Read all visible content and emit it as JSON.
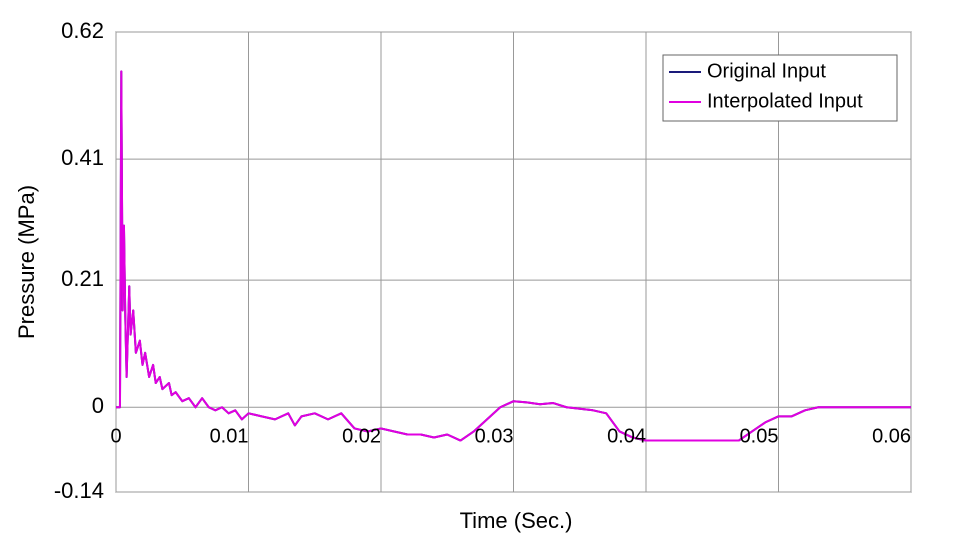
{
  "chart_data": {
    "type": "line",
    "x_label": "Time (Sec.)",
    "y_label": "Pressure (MPa)",
    "xlim": [
      0,
      0.06
    ],
    "xticks": [
      0,
      0.01,
      0.02,
      0.03,
      0.04,
      0.05,
      0.06
    ],
    "ylim": [
      -0.14,
      0.62
    ],
    "yticks": [
      -0.14,
      0,
      0.21,
      0.41,
      0.62
    ],
    "grid": true,
    "legend": "top-right",
    "x": [
      0,
      0.0003,
      0.0004,
      0.0005,
      0.0006,
      0.0007,
      0.0008,
      0.001,
      0.0011,
      0.0013,
      0.0015,
      0.0018,
      0.002,
      0.0022,
      0.0025,
      0.0028,
      0.003,
      0.0033,
      0.0035,
      0.004,
      0.0042,
      0.0045,
      0.005,
      0.0055,
      0.006,
      0.0065,
      0.007,
      0.0075,
      0.008,
      0.0085,
      0.009,
      0.0095,
      0.01,
      0.011,
      0.012,
      0.013,
      0.0135,
      0.014,
      0.015,
      0.016,
      0.017,
      0.018,
      0.019,
      0.02,
      0.021,
      0.022,
      0.023,
      0.024,
      0.025,
      0.026,
      0.027,
      0.028,
      0.029,
      0.03,
      0.031,
      0.032,
      0.033,
      0.034,
      0.036,
      0.037,
      0.038,
      0.039,
      0.04,
      0.042,
      0.045,
      0.047,
      0.048,
      0.049,
      0.05,
      0.051,
      0.052,
      0.053,
      0.06
    ],
    "series": [
      {
        "name": "Original Input",
        "color": "#1a1a7a",
        "values": [
          0,
          0,
          0.555,
          0.16,
          0.3,
          0.15,
          0.05,
          0.2,
          0.12,
          0.16,
          0.09,
          0.11,
          0.07,
          0.09,
          0.05,
          0.07,
          0.04,
          0.05,
          0.03,
          0.04,
          0.02,
          0.025,
          0.01,
          0.015,
          0,
          0.015,
          0,
          -0.005,
          0,
          -0.01,
          -0.005,
          -0.02,
          -0.01,
          -0.015,
          -0.02,
          -0.01,
          -0.03,
          -0.015,
          -0.01,
          -0.02,
          -0.01,
          -0.035,
          -0.04,
          -0.035,
          -0.04,
          -0.045,
          -0.045,
          -0.05,
          -0.045,
          -0.055,
          -0.04,
          -0.02,
          0,
          0.01,
          0.008,
          0.005,
          0.007,
          0,
          -0.005,
          -0.01,
          -0.04,
          -0.05,
          -0.055,
          -0.055,
          -0.055,
          -0.055,
          -0.04,
          -0.025,
          -0.015,
          -0.015,
          -0.005,
          0,
          0
        ]
      },
      {
        "name": "Interpolated Input",
        "color": "#e000e0",
        "values": [
          0,
          0,
          0.555,
          0.16,
          0.3,
          0.15,
          0.05,
          0.2,
          0.12,
          0.16,
          0.09,
          0.11,
          0.07,
          0.09,
          0.05,
          0.07,
          0.04,
          0.05,
          0.03,
          0.04,
          0.02,
          0.025,
          0.01,
          0.015,
          0,
          0.015,
          0,
          -0.005,
          0,
          -0.01,
          -0.005,
          -0.02,
          -0.01,
          -0.015,
          -0.02,
          -0.01,
          -0.03,
          -0.015,
          -0.01,
          -0.02,
          -0.01,
          -0.035,
          -0.04,
          -0.035,
          -0.04,
          -0.045,
          -0.045,
          -0.05,
          -0.045,
          -0.055,
          -0.04,
          -0.02,
          0,
          0.01,
          0.008,
          0.005,
          0.007,
          0,
          -0.005,
          -0.01,
          -0.04,
          -0.05,
          -0.055,
          -0.055,
          -0.055,
          -0.055,
          -0.04,
          -0.025,
          -0.015,
          -0.015,
          -0.005,
          0,
          0
        ]
      }
    ]
  }
}
